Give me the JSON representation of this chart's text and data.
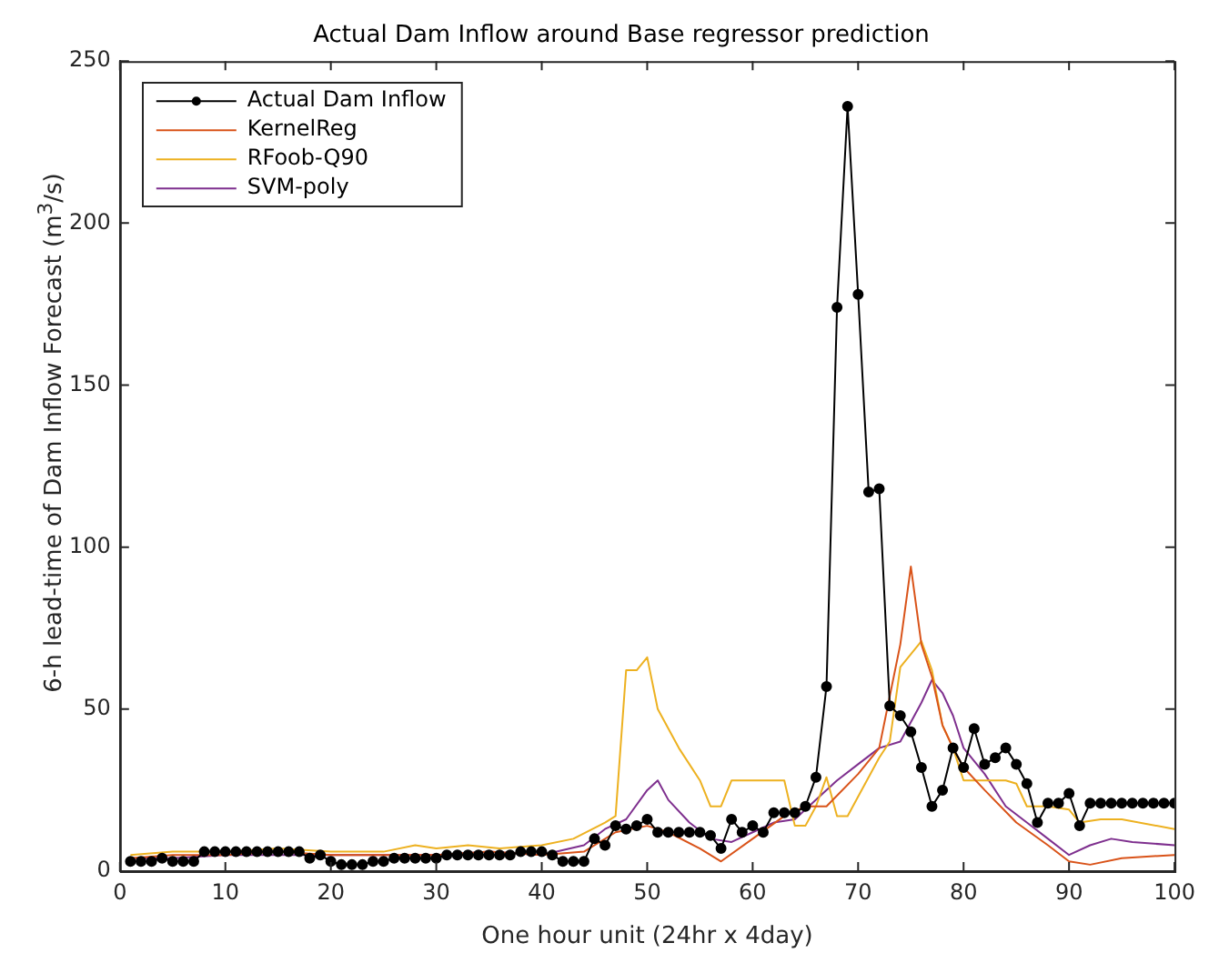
{
  "chart_data": {
    "type": "line",
    "title": "Actual Dam Inflow around Base regressor prediction",
    "xlabel": "One hour unit (24hr x 4day)",
    "ylabel": "6-h lead-time of Dam Inflow Forecast (m$^{3}$/s)",
    "xlim": [
      0,
      100
    ],
    "xticks": [
      0,
      10,
      20,
      30,
      40,
      50,
      60,
      70,
      80,
      90,
      100
    ],
    "ylim": [
      0,
      250
    ],
    "yticks": [
      0,
      50,
      100,
      150,
      200,
      250
    ],
    "grid": false,
    "legend": "top left",
    "series": [
      {
        "name": "Actual Dam Inflow",
        "color": "#000000",
        "marker": "circle",
        "x": [
          1,
          2,
          3,
          4,
          5,
          6,
          7,
          8,
          9,
          10,
          11,
          12,
          13,
          14,
          15,
          16,
          17,
          18,
          19,
          20,
          21,
          22,
          23,
          24,
          25,
          26,
          27,
          28,
          29,
          30,
          31,
          32,
          33,
          34,
          35,
          36,
          37,
          38,
          39,
          40,
          41,
          42,
          43,
          44,
          45,
          46,
          47,
          48,
          49,
          50,
          51,
          52,
          53,
          54,
          55,
          56,
          57,
          58,
          59,
          60,
          61,
          62,
          63,
          64,
          65,
          66,
          67,
          68,
          69,
          70,
          71,
          72,
          73,
          74,
          75,
          76,
          77,
          78,
          79,
          80,
          81,
          82,
          83,
          84,
          85,
          86,
          87,
          88,
          89,
          90,
          91,
          92,
          93,
          94,
          95,
          96,
          97,
          98,
          99,
          100
        ],
        "values": [
          3,
          3,
          3,
          4,
          3,
          3,
          3,
          6,
          6,
          6,
          6,
          6,
          6,
          6,
          6,
          6,
          6,
          4,
          5,
          3,
          2,
          2,
          2,
          3,
          3,
          4,
          4,
          4,
          4,
          4,
          5,
          5,
          5,
          5,
          5,
          5,
          5,
          6,
          6,
          6,
          5,
          3,
          3,
          3,
          10,
          8,
          14,
          13,
          14,
          16,
          12,
          12,
          12,
          12,
          12,
          11,
          7,
          16,
          12,
          14,
          12,
          18,
          18,
          18,
          20,
          29,
          57,
          174,
          236,
          178,
          117,
          118,
          51,
          48,
          43,
          32,
          20,
          25,
          38,
          32,
          44,
          33,
          35,
          38,
          33,
          27,
          15,
          21,
          21,
          24,
          14,
          21,
          21,
          21,
          21,
          21,
          21,
          21,
          21,
          21
        ]
      },
      {
        "name": "KernelReg",
        "color": "#d95319",
        "marker": "none",
        "x": [
          1,
          5,
          10,
          15,
          20,
          25,
          30,
          35,
          40,
          44,
          47,
          50,
          52,
          55,
          57,
          60,
          63,
          65,
          67,
          70,
          72,
          74,
          75,
          76,
          77,
          78,
          79,
          80,
          82,
          85,
          88,
          90,
          92,
          95,
          100
        ],
        "values": [
          4,
          5,
          5,
          6,
          5,
          5,
          5,
          6,
          5,
          6,
          12,
          14,
          12,
          7,
          3,
          10,
          17,
          20,
          20,
          30,
          38,
          70,
          94,
          70,
          60,
          45,
          38,
          32,
          25,
          15,
          8,
          3,
          2,
          4,
          5
        ]
      },
      {
        "name": "RFoob-Q90",
        "color": "#edb120",
        "marker": "none",
        "x": [
          1,
          5,
          10,
          15,
          20,
          25,
          28,
          30,
          33,
          36,
          40,
          43,
          46,
          47,
          48,
          49,
          50,
          51,
          53,
          55,
          56,
          57,
          58,
          60,
          63,
          64,
          65,
          66,
          67,
          68,
          69,
          70,
          72,
          73,
          74,
          76,
          77,
          78,
          79,
          80,
          82,
          84,
          85,
          86,
          88,
          90,
          91,
          93,
          95,
          100
        ],
        "values": [
          5,
          6,
          6,
          7,
          6,
          6,
          8,
          7,
          8,
          7,
          8,
          10,
          15,
          17,
          62,
          62,
          66,
          50,
          38,
          28,
          20,
          20,
          28,
          28,
          28,
          14,
          14,
          20,
          29,
          17,
          17,
          23,
          35,
          40,
          63,
          71,
          62,
          45,
          38,
          28,
          28,
          28,
          27,
          20,
          20,
          19,
          15,
          16,
          16,
          13
        ]
      },
      {
        "name": "SVM-poly",
        "color": "#7e2f8e",
        "marker": "none",
        "x": [
          1,
          5,
          10,
          15,
          20,
          25,
          30,
          35,
          40,
          44,
          46,
          48,
          50,
          51,
          52,
          54,
          56,
          58,
          60,
          62,
          64,
          66,
          68,
          70,
          72,
          74,
          76,
          77,
          78,
          79,
          80,
          82,
          84,
          86,
          88,
          90,
          92,
          94,
          96,
          100
        ],
        "values": [
          4,
          4,
          5,
          5,
          5,
          5,
          5,
          6,
          5,
          8,
          13,
          16,
          25,
          28,
          22,
          15,
          10,
          9,
          12,
          15,
          16,
          22,
          28,
          33,
          38,
          40,
          52,
          59,
          55,
          48,
          38,
          30,
          20,
          15,
          10,
          5,
          8,
          10,
          9,
          8
        ]
      }
    ]
  }
}
